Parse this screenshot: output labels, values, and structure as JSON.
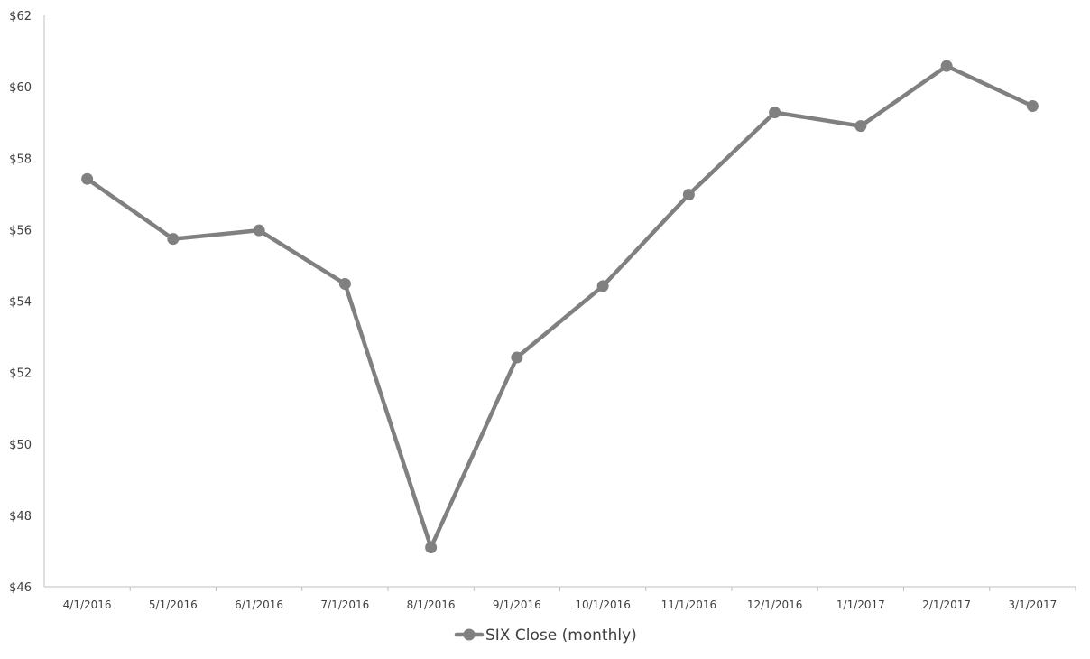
{
  "chart_data": {
    "type": "line",
    "title": "",
    "xlabel": "",
    "ylabel": "",
    "categories": [
      "4/1/2016",
      "5/1/2016",
      "6/1/2016",
      "7/1/2016",
      "8/1/2016",
      "9/1/2016",
      "10/1/2016",
      "11/1/2016",
      "12/1/2016",
      "1/1/2017",
      "2/1/2017",
      "3/1/2017"
    ],
    "series": [
      {
        "name": "SIX Close (monthly)",
        "values": [
          57.42,
          55.74,
          55.98,
          54.48,
          47.1,
          52.42,
          54.42,
          56.98,
          59.28,
          58.9,
          60.58,
          59.46
        ],
        "color": "#808080"
      }
    ],
    "ylim": [
      46,
      62
    ],
    "yticks": [
      46,
      48,
      50,
      52,
      54,
      56,
      58,
      60,
      62
    ],
    "ytick_labels": [
      "$46",
      "$48",
      "$50",
      "$52",
      "$54",
      "$56",
      "$58",
      "$60",
      "$62"
    ],
    "grid": false,
    "legend_position": "bottom",
    "axis_color": "#bfbfbf",
    "text_color": "#404040"
  }
}
